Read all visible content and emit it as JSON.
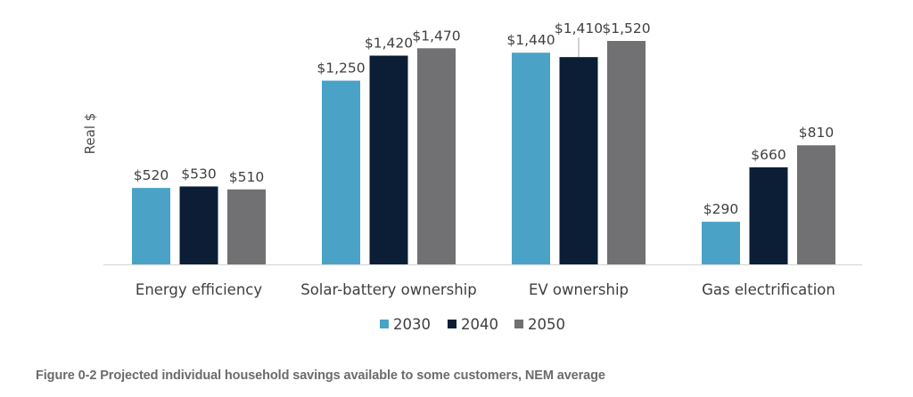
{
  "chart_data": {
    "type": "bar",
    "title": "",
    "xlabel": "",
    "ylabel": "Real $",
    "ylim": [
      0,
      1520
    ],
    "grid": false,
    "legend_position": "bottom-center",
    "categories": [
      "Energy efficiency",
      "Solar-battery ownership",
      "EV ownership",
      "Gas electrification"
    ],
    "series": [
      {
        "name": "2030",
        "color": "#4aa3c7",
        "values": [
          520,
          1250,
          1440,
          290
        ],
        "labels": [
          "$520",
          "$1,250",
          "$1,440",
          "$290"
        ]
      },
      {
        "name": "2040",
        "color": "#0b1e35",
        "values": [
          530,
          1420,
          1410,
          660
        ],
        "labels": [
          "$530",
          "$1,420",
          "$1,410",
          "$660"
        ]
      },
      {
        "name": "2050",
        "color": "#717174",
        "values": [
          510,
          1470,
          1520,
          810
        ],
        "labels": [
          "$510",
          "$1,470",
          "$1,520",
          "$810"
        ]
      }
    ],
    "axis_color": "#d9d9d9",
    "caption": "Figure 0-2 Projected individual household savings available to some customers, NEM average"
  }
}
